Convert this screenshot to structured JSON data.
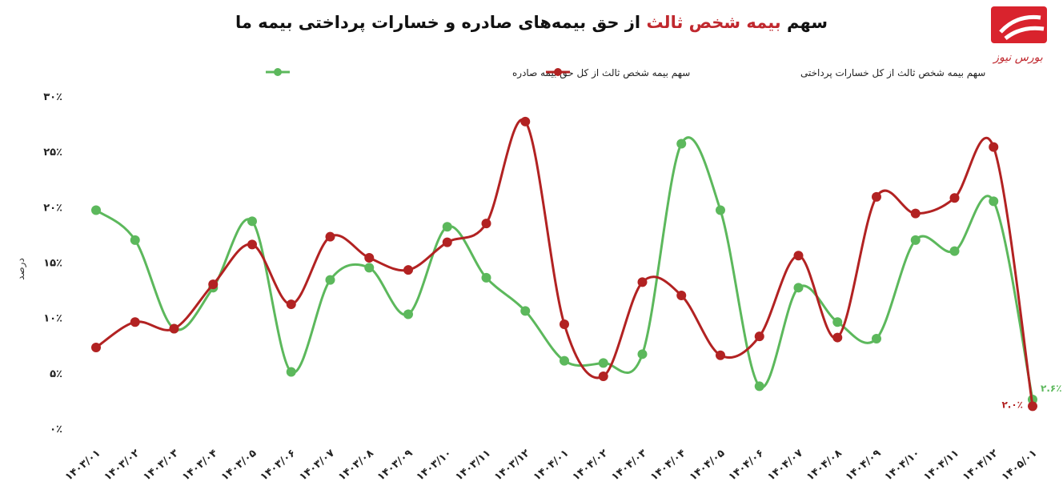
{
  "brand": "بورس نیوز",
  "chart_data": {
    "type": "line",
    "title": [
      "سهم",
      "بیمه شخص ثالث",
      "از حق بیمه‌های صادره و خسارات پرداختی بیمه ما"
    ],
    "y_label": "درصد",
    "categories": [
      "۱۴۰۳/۰۱",
      "۱۴۰۳/۰۲",
      "۱۴۰۳/۰۳",
      "۱۴۰۳/۰۴",
      "۱۴۰۳/۰۵",
      "۱۴۰۳/۰۶",
      "۱۴۰۳/۰۷",
      "۱۴۰۳/۰۸",
      "۱۴۰۳/۰۹",
      "۱۴۰۳/۱۰",
      "۱۴۰۳/۱۱",
      "۱۴۰۳/۱۲",
      "۱۴۰۴/۰۱",
      "۱۴۰۴/۰۲",
      "۱۴۰۴/۰۳",
      "۱۴۰۴/۰۴",
      "۱۴۰۴/۰۵",
      "۱۴۰۴/۰۶",
      "۱۴۰۴/۰۷",
      "۱۴۰۴/۰۸",
      "۱۴۰۴/۰۹",
      "۱۴۰۴/۱۰",
      "۱۴۰۴/۱۱",
      "۱۴۰۴/۱۲",
      "۱۴۰۵/۰۱"
    ],
    "series": [
      {
        "name": "سهم بیمه شخص ثالث از کل حق بیمه صادره",
        "color": "#5cb85c",
        "values": [
          19.7,
          17.0,
          9.0,
          12.7,
          18.7,
          5.1,
          13.4,
          14.5,
          10.3,
          18.2,
          13.6,
          10.6,
          6.1,
          5.9,
          6.7,
          25.7,
          19.7,
          3.8,
          12.7,
          9.6,
          8.1,
          17.0,
          16.0,
          20.5,
          2.6
        ],
        "value_labels": [
          null,
          null,
          null,
          null,
          null,
          null,
          null,
          null,
          null,
          null,
          null,
          null,
          null,
          null,
          null,
          null,
          null,
          null,
          null,
          null,
          null,
          null,
          null,
          null,
          "۲.۶٪"
        ]
      },
      {
        "name": "سهم بیمه شخص ثالث از کل خسارات پرداختی",
        "color": "#b22222",
        "values": [
          7.3,
          9.6,
          9.0,
          13.0,
          16.6,
          11.2,
          17.3,
          15.4,
          14.3,
          16.8,
          18.5,
          27.7,
          9.4,
          4.7,
          13.2,
          12.0,
          6.6,
          8.3,
          15.6,
          8.2,
          20.9,
          19.4,
          20.8,
          25.4,
          2.0
        ],
        "value_labels": [
          null,
          null,
          null,
          null,
          null,
          null,
          null,
          null,
          null,
          null,
          null,
          null,
          null,
          null,
          null,
          null,
          null,
          null,
          null,
          null,
          null,
          null,
          null,
          null,
          "۲.۰٪"
        ]
      }
    ],
    "ylim": [
      0,
      30
    ],
    "yticks": [
      {
        "value": 0,
        "label": "۰٪"
      },
      {
        "value": 5,
        "label": "۵٪"
      },
      {
        "value": 10,
        "label": "۱۰٪"
      },
      {
        "value": 15,
        "label": "۱۵٪"
      },
      {
        "value": 20,
        "label": "۲۰٪"
      },
      {
        "value": 25,
        "label": "۲۵٪"
      },
      {
        "value": 30,
        "label": "۳۰٪"
      }
    ],
    "grid": false
  }
}
